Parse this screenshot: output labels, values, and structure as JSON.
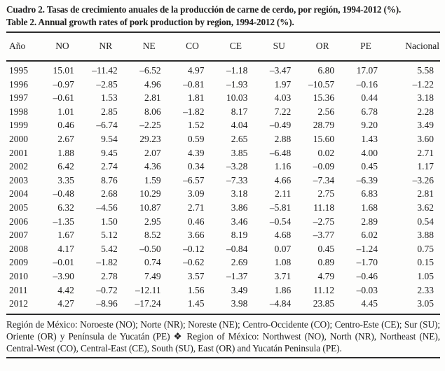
{
  "title_es": "Cuadro 2. Tasas de crecimiento anuales de la producción de carne de cerdo, por región, 1994-2012 (%).",
  "title_en": "Table 2. Annual growth rates of pork production by region, 1994-2012 (%).",
  "table": {
    "columns": [
      "Año",
      "NO",
      "NR",
      "NE",
      "CO",
      "CE",
      "SU",
      "OR",
      "PE",
      "Nacional"
    ],
    "rows": [
      [
        "1995",
        "15.01",
        "–11.42",
        "–6.52",
        "4.97",
        "–1.18",
        "–3.47",
        "6.80",
        "17.07",
        "5.58"
      ],
      [
        "1996",
        "–0.97",
        "–2.85",
        "4.96",
        "–0.81",
        "–1.93",
        "1.97",
        "–10.57",
        "–0.16",
        "–1.22"
      ],
      [
        "1997",
        "–0.61",
        "1.53",
        "2.81",
        "1.81",
        "10.03",
        "4.03",
        "15.36",
        "0.44",
        "3.18"
      ],
      [
        "1998",
        "1.01",
        "2.85",
        "8.06",
        "–1.82",
        "8.17",
        "7.22",
        "2.56",
        "6.78",
        "2.28"
      ],
      [
        "1999",
        "0.46",
        "–6.74",
        "–2.25",
        "1.52",
        "4.04",
        "–0.49",
        "28.79",
        "9.20",
        "3.49"
      ],
      [
        "2000",
        "2.67",
        "9.54",
        "29.23",
        "0.59",
        "2.65",
        "2.88",
        "15.60",
        "1.43",
        "3.60"
      ],
      [
        "2001",
        "1.88",
        "9.45",
        "2.07",
        "4.39",
        "3.85",
        "–6.48",
        "0.02",
        "4.00",
        "2.71"
      ],
      [
        "2002",
        "6.42",
        "2.74",
        "4.36",
        "0.34",
        "–3.28",
        "1.16",
        "–0.09",
        "0.45",
        "1.17"
      ],
      [
        "2003",
        "3.35",
        "8.76",
        "1.59",
        "–6.57",
        "–7.33",
        "4.66",
        "–7.34",
        "–6.39",
        "–3.26"
      ],
      [
        "2004",
        "–0.48",
        "2.68",
        "10.29",
        "3.09",
        "3.18",
        "2.11",
        "2.75",
        "6.83",
        "2.81"
      ],
      [
        "2005",
        "6.32",
        "–4.56",
        "10.87",
        "2.71",
        "3.86",
        "–5.81",
        "11.18",
        "1.68",
        "3.62"
      ],
      [
        "2006",
        "–1.35",
        "1.50",
        "2.95",
        "0.46",
        "3.46",
        "–0.54",
        "–2.75",
        "2.89",
        "0.54"
      ],
      [
        "2007",
        "1.67",
        "5.12",
        "8.52",
        "3.66",
        "8.19",
        "4.68",
        "–3.77",
        "6.02",
        "3.88"
      ],
      [
        "2008",
        "4.17",
        "5.42",
        "–0.50",
        "–0.12",
        "–0.84",
        "0.07",
        "0.45",
        "–1.24",
        "0.75"
      ],
      [
        "2009",
        "–0.01",
        "–1.82",
        "0.74",
        "–0.62",
        "2.69",
        "1.08",
        "0.89",
        "–1.70",
        "0.15"
      ],
      [
        "2010",
        "–3.90",
        "2.78",
        "7.49",
        "3.57",
        "–1.37",
        "3.71",
        "4.79",
        "–0.46",
        "1.05"
      ],
      [
        "2011",
        "4.42",
        "–0.72",
        "–12.11",
        "1.56",
        "3.49",
        "1.86",
        "11.12",
        "–0.03",
        "2.33"
      ],
      [
        "2012",
        "4.27",
        "–8.96",
        "–17.24",
        "1.45",
        "3.98",
        "–4.84",
        "23.85",
        "4.45",
        "3.05"
      ]
    ]
  },
  "footnote": "Región de México: Noroeste (NO); Norte (NR); Noreste (NE); Centro-Occidente (CO); Centro-Este (CE); Sur (SU); Oriente (OR) y Península de Yucatán (PE) ❖ Region of México: Northwest (NO), North (NR), Northeast (NE), Central-West (CO), Central-East (CE), South (SU), East (OR) and Yucatán Peninsula (PE).",
  "colors": {
    "text": "#1e1e1e",
    "rule": "#2c2c2c",
    "background": "#fdfdfc"
  }
}
